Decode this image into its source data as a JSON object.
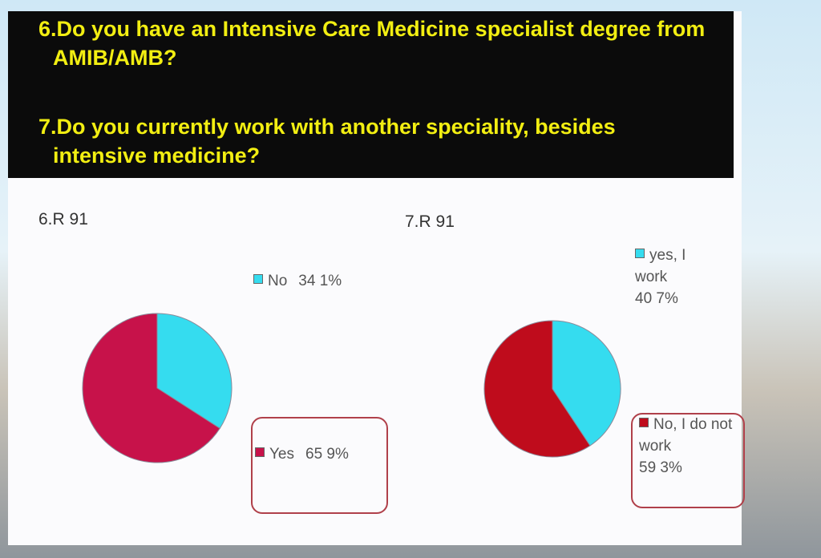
{
  "slide": {
    "questions": [
      "6.Do you have an Intensive Care Medicine specialist degree from AMIB/AMB?",
      "7.Do you currently work with another speciality, besides intensive medicine?"
    ]
  },
  "chart_data": [
    {
      "type": "pie",
      "title": "6.R 91",
      "categories": [
        "No",
        "Yes"
      ],
      "values": [
        34.1,
        65.9
      ],
      "value_labels": [
        "34 1%",
        "65 9%"
      ],
      "colors": [
        "#35dcef",
        "#c7124a"
      ]
    },
    {
      "type": "pie",
      "title": "7.R 91",
      "categories": [
        "yes, I work",
        "No, I do not work"
      ],
      "values": [
        40.7,
        59.3
      ],
      "value_labels": [
        "40 7%",
        "59 3%"
      ],
      "colors": [
        "#35dcef",
        "#bf0c1c"
      ]
    }
  ]
}
